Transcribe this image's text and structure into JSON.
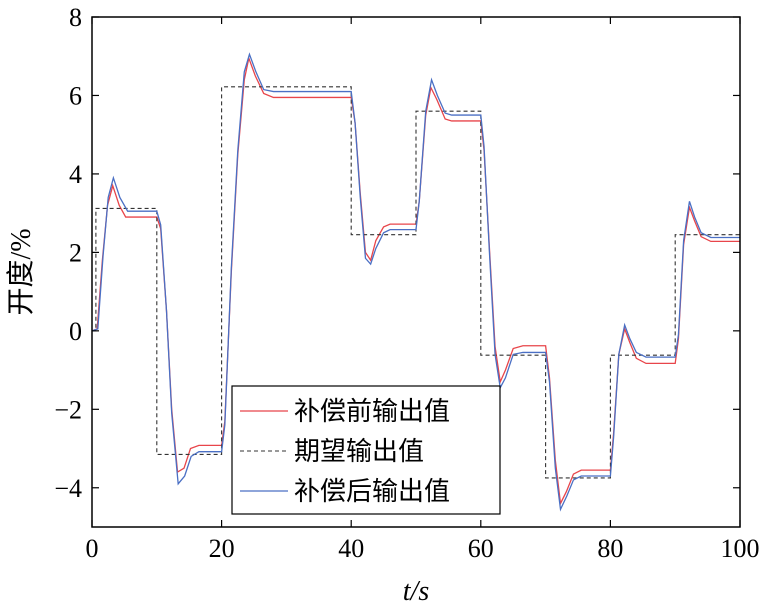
{
  "chart_data": {
    "type": "line",
    "title": "",
    "xlabel": "t/s",
    "ylabel": "开度/%",
    "xlim": [
      0,
      100
    ],
    "ylim": [
      -5,
      8
    ],
    "x_ticks": [
      "0",
      "20",
      "40",
      "60",
      "80",
      "100"
    ],
    "y_ticks": [
      "−4",
      "−2",
      "0",
      "2",
      "4",
      "6",
      "8"
    ],
    "grid": false,
    "legend_position": "bottom-left",
    "series": [
      {
        "name": "补偿前输出值",
        "color": "#e8454a",
        "style": "solid",
        "points": [
          [
            0,
            0
          ],
          [
            0.8,
            0.05
          ],
          [
            1.6,
            1.8
          ],
          [
            2.4,
            3.2
          ],
          [
            3.2,
            3.7
          ],
          [
            4.2,
            3.2
          ],
          [
            5.2,
            2.9
          ],
          [
            10,
            2.9
          ],
          [
            10.6,
            2.6
          ],
          [
            11.5,
            0.5
          ],
          [
            12.3,
            -2.0
          ],
          [
            13.2,
            -3.6
          ],
          [
            14.2,
            -3.5
          ],
          [
            15.2,
            -3.0
          ],
          [
            16.5,
            -2.92
          ],
          [
            20,
            -2.92
          ],
          [
            20.5,
            -2.3
          ],
          [
            21.5,
            1.5
          ],
          [
            22.5,
            4.5
          ],
          [
            23.5,
            6.4
          ],
          [
            24.2,
            6.95
          ],
          [
            25.2,
            6.5
          ],
          [
            26.5,
            6.05
          ],
          [
            28,
            5.95
          ],
          [
            40,
            5.95
          ],
          [
            40.6,
            5.3
          ],
          [
            41.4,
            3.5
          ],
          [
            42.2,
            2.0
          ],
          [
            43,
            1.8
          ],
          [
            43.8,
            2.3
          ],
          [
            45,
            2.65
          ],
          [
            46,
            2.72
          ],
          [
            50,
            2.72
          ],
          [
            50.5,
            3.3
          ],
          [
            51.5,
            5.5
          ],
          [
            52.3,
            6.2
          ],
          [
            53.2,
            5.9
          ],
          [
            54.5,
            5.4
          ],
          [
            55.5,
            5.35
          ],
          [
            60,
            5.35
          ],
          [
            60.5,
            4.6
          ],
          [
            61.3,
            2.2
          ],
          [
            62.2,
            -0.4
          ],
          [
            63,
            -1.3
          ],
          [
            63.8,
            -1.0
          ],
          [
            65,
            -0.45
          ],
          [
            66.5,
            -0.38
          ],
          [
            70,
            -0.38
          ],
          [
            70.6,
            -1.2
          ],
          [
            71.5,
            -3.3
          ],
          [
            72.3,
            -4.4
          ],
          [
            73.2,
            -4.1
          ],
          [
            74.3,
            -3.65
          ],
          [
            75.5,
            -3.55
          ],
          [
            80,
            -3.55
          ],
          [
            80.5,
            -2.6
          ],
          [
            81.3,
            -0.6
          ],
          [
            82.2,
            0.05
          ],
          [
            83,
            -0.3
          ],
          [
            84,
            -0.7
          ],
          [
            85.5,
            -0.83
          ],
          [
            90,
            -0.83
          ],
          [
            90.5,
            -0.2
          ],
          [
            91.3,
            2.2
          ],
          [
            92.2,
            3.15
          ],
          [
            93,
            2.8
          ],
          [
            94,
            2.4
          ],
          [
            95.5,
            2.28
          ],
          [
            100,
            2.28
          ]
        ]
      },
      {
        "name": "期望输出值",
        "color": "#333333",
        "style": "dashed",
        "points": [
          [
            0,
            0
          ],
          [
            0.6,
            0
          ],
          [
            0.6,
            3.12
          ],
          [
            10,
            3.12
          ],
          [
            10,
            -3.15
          ],
          [
            20,
            -3.15
          ],
          [
            20,
            6.22
          ],
          [
            40,
            6.22
          ],
          [
            40,
            2.45
          ],
          [
            50,
            2.45
          ],
          [
            50,
            5.6
          ],
          [
            60,
            5.6
          ],
          [
            60,
            -0.62
          ],
          [
            70,
            -0.62
          ],
          [
            70,
            -3.75
          ],
          [
            80,
            -3.75
          ],
          [
            80,
            -0.62
          ],
          [
            90,
            -0.62
          ],
          [
            90,
            2.45
          ],
          [
            100,
            2.45
          ]
        ]
      },
      {
        "name": "补偿后输出值",
        "color": "#4a6fc4",
        "style": "solid",
        "points": [
          [
            0,
            0
          ],
          [
            0.9,
            0.05
          ],
          [
            1.7,
            1.9
          ],
          [
            2.5,
            3.4
          ],
          [
            3.3,
            3.9
          ],
          [
            4.3,
            3.4
          ],
          [
            5.5,
            3.05
          ],
          [
            10,
            3.05
          ],
          [
            10.6,
            2.7
          ],
          [
            11.5,
            0.5
          ],
          [
            12.3,
            -2.1
          ],
          [
            13.3,
            -3.9
          ],
          [
            14.3,
            -3.7
          ],
          [
            15.3,
            -3.2
          ],
          [
            16.5,
            -3.08
          ],
          [
            20,
            -3.08
          ],
          [
            20.5,
            -2.4
          ],
          [
            21.5,
            1.6
          ],
          [
            22.5,
            4.6
          ],
          [
            23.5,
            6.6
          ],
          [
            24.3,
            7.05
          ],
          [
            25.3,
            6.6
          ],
          [
            26.5,
            6.15
          ],
          [
            28,
            6.1
          ],
          [
            40,
            6.1
          ],
          [
            40.6,
            5.3
          ],
          [
            41.4,
            3.4
          ],
          [
            42.2,
            1.85
          ],
          [
            43,
            1.7
          ],
          [
            43.8,
            2.1
          ],
          [
            45,
            2.5
          ],
          [
            46,
            2.58
          ],
          [
            50,
            2.58
          ],
          [
            50.5,
            3.3
          ],
          [
            51.5,
            5.6
          ],
          [
            52.4,
            6.4
          ],
          [
            53.3,
            6.0
          ],
          [
            54.5,
            5.55
          ],
          [
            55.5,
            5.5
          ],
          [
            60,
            5.5
          ],
          [
            60.5,
            4.7
          ],
          [
            61.3,
            2.1
          ],
          [
            62.2,
            -0.6
          ],
          [
            63,
            -1.45
          ],
          [
            63.8,
            -1.2
          ],
          [
            65,
            -0.6
          ],
          [
            66.5,
            -0.55
          ],
          [
            70,
            -0.55
          ],
          [
            70.6,
            -1.3
          ],
          [
            71.5,
            -3.5
          ],
          [
            72.3,
            -4.55
          ],
          [
            73.3,
            -4.2
          ],
          [
            74.3,
            -3.8
          ],
          [
            75.5,
            -3.7
          ],
          [
            80,
            -3.7
          ],
          [
            80.5,
            -2.7
          ],
          [
            81.3,
            -0.6
          ],
          [
            82.2,
            0.15
          ],
          [
            83,
            -0.2
          ],
          [
            84,
            -0.55
          ],
          [
            85.5,
            -0.67
          ],
          [
            90,
            -0.67
          ],
          [
            90.5,
            -0.1
          ],
          [
            91.3,
            2.3
          ],
          [
            92.2,
            3.3
          ],
          [
            93,
            2.9
          ],
          [
            94,
            2.5
          ],
          [
            95.5,
            2.38
          ],
          [
            100,
            2.38
          ]
        ]
      }
    ]
  }
}
